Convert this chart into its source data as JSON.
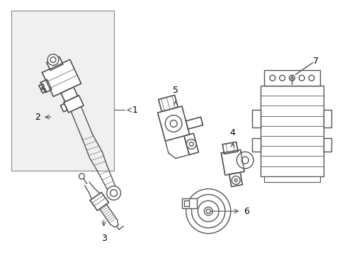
{
  "bg_color": "#ffffff",
  "line_color": "#555555",
  "label_color": "#000000",
  "fig_width": 4.9,
  "fig_height": 3.6,
  "dpi": 100
}
